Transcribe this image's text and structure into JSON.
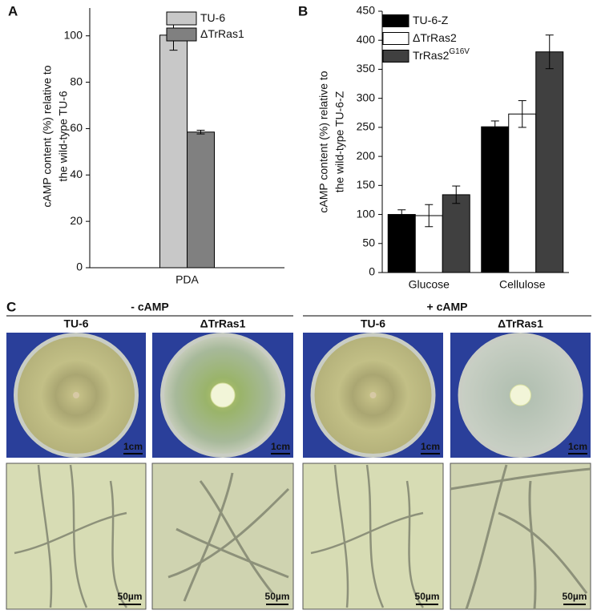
{
  "chart_data": [
    {
      "type": "bar",
      "panel": "A",
      "ylabel": [
        "cAMP content (%) relative to",
        "the wild-type TU-6"
      ],
      "categories": [
        "PDA"
      ],
      "series": [
        {
          "name": "TU-6",
          "color": "#c8c8c8",
          "values": [
            100.3
          ],
          "errors": [
            6.5
          ]
        },
        {
          "name": "ΔTrRas1",
          "color": "#808080",
          "values": [
            58.5
          ],
          "errors": [
            0.8
          ]
        }
      ],
      "ylim": [
        0,
        112
      ],
      "yticks": [
        0,
        20,
        40,
        60,
        80,
        100
      ],
      "legend": "top-right"
    },
    {
      "type": "bar",
      "panel": "B",
      "ylabel": [
        "cAMP content (%) relative to",
        "the wild-type TU-6-Z"
      ],
      "categories": [
        "Glucose",
        "Cellulose"
      ],
      "series": [
        {
          "name": "TU-6-Z",
          "color": "#000000",
          "values": [
            100,
            251
          ],
          "errors": [
            8,
            10
          ]
        },
        {
          "name": "ΔTrRas2",
          "color": "#ffffff",
          "values": [
            98,
            273
          ],
          "errors": [
            19,
            23
          ]
        },
        {
          "name": "TrRas2",
          "name_sup": "G16V",
          "color": "#404040",
          "values": [
            134,
            380
          ],
          "errors": [
            15,
            29
          ]
        }
      ],
      "ylim": [
        0,
        450
      ],
      "yticks": [
        0,
        50,
        100,
        150,
        200,
        250,
        300,
        350,
        400,
        450
      ],
      "legend": "top-left"
    }
  ],
  "panel_c": {
    "label": "C",
    "groups": [
      {
        "title": "- cAMP",
        "columns": [
          "TU-6",
          "ΔTrRas1"
        ]
      },
      {
        "title": "+ cAMP",
        "columns": [
          "TU-6",
          "ΔTrRas1"
        ]
      }
    ],
    "scale_bars": [
      "1cm",
      "50µm"
    ]
  }
}
